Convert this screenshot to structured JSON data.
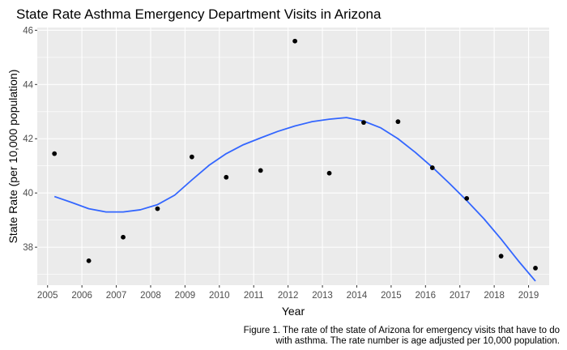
{
  "chart_data": {
    "type": "scatter",
    "title": "State Rate Asthma Emergency Department Visits in Arizona",
    "xlabel": "Year",
    "ylabel": "State Rate (per 10,000 population)",
    "xlim": [
      2004.7,
      2019.6
    ],
    "ylim": [
      36.6,
      46.1
    ],
    "x_ticks": [
      2005,
      2006,
      2007,
      2008,
      2009,
      2010,
      2011,
      2012,
      2013,
      2014,
      2015,
      2016,
      2017,
      2018,
      2019
    ],
    "y_ticks": [
      38,
      40,
      42,
      44,
      46
    ],
    "grid": true,
    "points": [
      {
        "x": 2005.2,
        "y": 41.45
      },
      {
        "x": 2006.2,
        "y": 37.5
      },
      {
        "x": 2007.2,
        "y": 38.37
      },
      {
        "x": 2008.2,
        "y": 39.42
      },
      {
        "x": 2009.2,
        "y": 41.33
      },
      {
        "x": 2010.2,
        "y": 40.58
      },
      {
        "x": 2011.2,
        "y": 40.83
      },
      {
        "x": 2012.2,
        "y": 45.6
      },
      {
        "x": 2013.2,
        "y": 40.73
      },
      {
        "x": 2014.2,
        "y": 42.6
      },
      {
        "x": 2015.2,
        "y": 42.63
      },
      {
        "x": 2016.2,
        "y": 40.93
      },
      {
        "x": 2017.2,
        "y": 39.8
      },
      {
        "x": 2018.2,
        "y": 37.67
      },
      {
        "x": 2019.2,
        "y": 37.23
      }
    ],
    "trend_line": {
      "x": [
        2005.2,
        2005.7,
        2006.2,
        2006.7,
        2007.2,
        2007.7,
        2008.2,
        2008.7,
        2009.2,
        2009.7,
        2010.2,
        2010.7,
        2011.2,
        2011.7,
        2012.2,
        2012.7,
        2013.2,
        2013.7,
        2014.2,
        2014.7,
        2015.2,
        2015.7,
        2016.2,
        2016.7,
        2017.2,
        2017.7,
        2018.2,
        2018.7,
        2019.2
      ],
      "y": [
        39.87,
        39.65,
        39.42,
        39.3,
        39.3,
        39.38,
        39.57,
        39.92,
        40.48,
        41.02,
        41.45,
        41.78,
        42.03,
        42.27,
        42.47,
        42.63,
        42.72,
        42.78,
        42.65,
        42.4,
        42.0,
        41.5,
        40.95,
        40.35,
        39.72,
        39.05,
        38.3,
        37.5,
        36.75
      ]
    },
    "point_color": "#000000",
    "line_color": "#3366FF",
    "panel_color": "#EBEBEB",
    "grid_color": "#FFFFFF"
  },
  "caption": {
    "line1": "Figure 1. The rate of the state of Arizona for emergency visits that have to do",
    "line2": "with asthma. The rate number is age adjusted per 10,000 population."
  }
}
